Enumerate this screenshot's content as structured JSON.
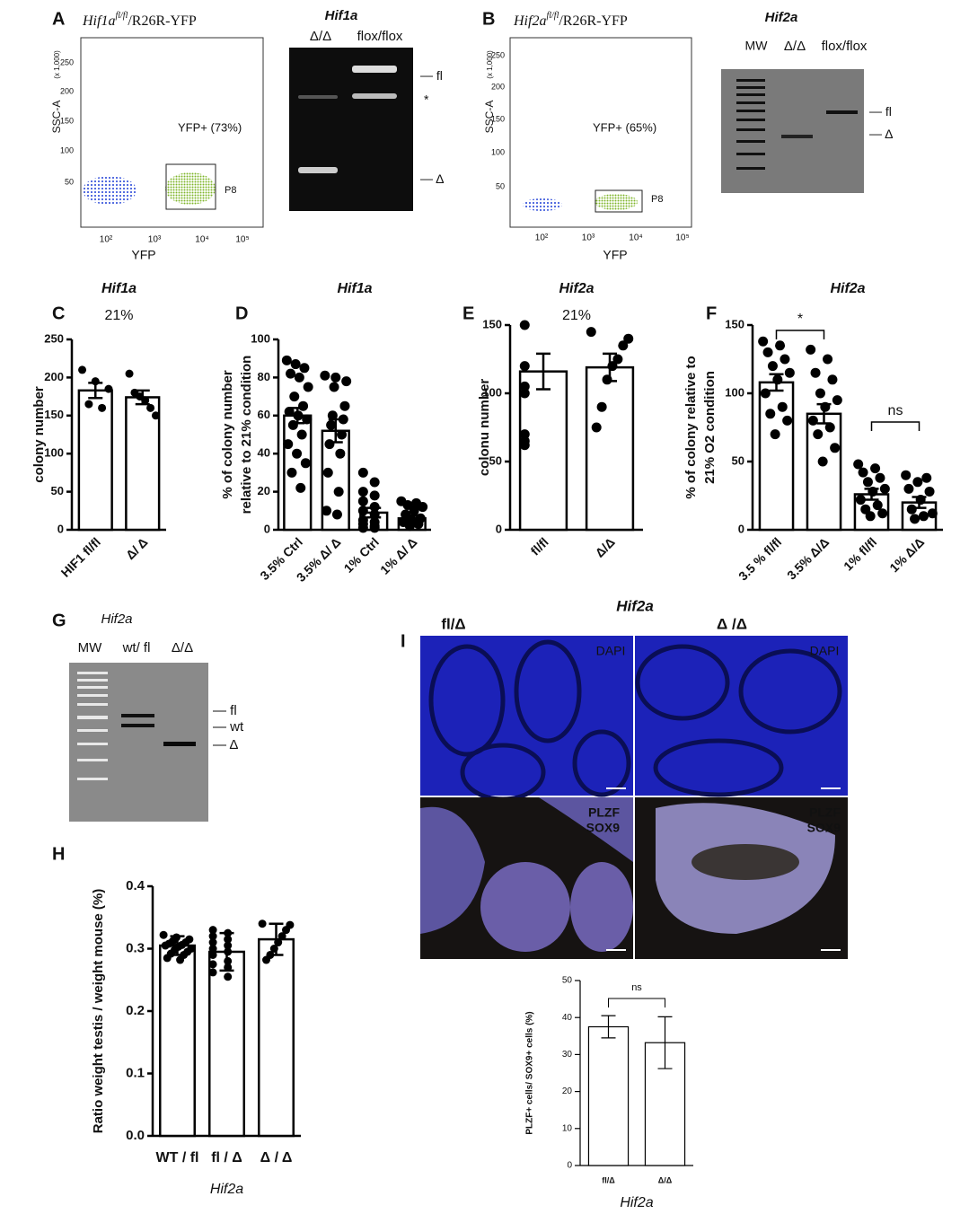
{
  "panel_labels": [
    "A",
    "B",
    "C",
    "D",
    "E",
    "F",
    "G",
    "H",
    "I"
  ],
  "flow": [
    {
      "gene": "Hif1a",
      "allele": "fl/fl",
      "reporter": "/R26R-YFP",
      "ylabel": "SSC-A",
      "yscale": "(x 1,000)",
      "yticks": [
        50,
        100,
        150,
        200,
        250
      ],
      "xticks": [
        "10²",
        "10³",
        "10⁴",
        "10⁵"
      ],
      "xlabel": "YFP",
      "gate": "P8",
      "population": "YFP+ (73%)"
    },
    {
      "gene": "Hif2a",
      "allele": "fl/fl",
      "reporter": "/R26R-YFP",
      "ylabel": "SSC-A",
      "yscale": "(x 1,000)",
      "yticks": [
        50,
        100,
        150,
        200,
        250
      ],
      "xticks": [
        "10²",
        "10³",
        "10⁴",
        "10⁵"
      ],
      "xlabel": "YFP",
      "gate": "P8",
      "population": "YFP+ (65%)"
    }
  ],
  "gels": [
    {
      "title": "Hif1a",
      "lanes": [
        "Δ/Δ",
        "flox/flox"
      ],
      "bands": [
        "fl",
        "*",
        "Δ"
      ]
    },
    {
      "title": "Hif2a",
      "lanes": [
        "MW",
        "Δ/Δ",
        "flox/flox"
      ],
      "bands": [
        "fl",
        "Δ"
      ]
    },
    {
      "title": "Hif2a",
      "lanes": [
        "MW",
        "wt/ fl",
        "Δ/Δ"
      ],
      "bands": [
        "fl",
        "wt",
        "Δ"
      ]
    }
  ],
  "micrograph": {
    "title": "Hif2a",
    "columns": [
      "fl/Δ",
      "Δ /Δ"
    ],
    "stain_top": "DAPI",
    "stain_green": "PLZF",
    "stain_red": "SOX9"
  },
  "chart_data": [
    {
      "type": "bar",
      "title": "Hif1a",
      "subtitle": "21%",
      "ylabel": [
        "colony number"
      ],
      "categories": [
        "HIF1 fl/fl",
        "Δ/ Δ"
      ],
      "values": [
        183,
        174
      ],
      "errors": [
        10,
        9
      ],
      "points": [
        [
          210,
          195,
          185,
          165,
          160
        ],
        [
          205,
          180,
          175,
          170,
          160,
          150
        ]
      ],
      "ylim": [
        0,
        250
      ],
      "yticks": [
        0,
        50,
        100,
        150,
        200,
        250
      ]
    },
    {
      "type": "bar",
      "title": "Hif1a",
      "ylabel": [
        "% of colony number",
        "relative to 21% condition"
      ],
      "categories": [
        "3.5% Ctrl",
        "3.5% Δ/ Δ",
        "1% Ctrl",
        "1% Δ/ Δ"
      ],
      "values": [
        60,
        52,
        9,
        6
      ],
      "errors": [
        4,
        6,
        2.5,
        1.5
      ],
      "points": [
        [
          89,
          87,
          85,
          82,
          80,
          75,
          70,
          65,
          62,
          60,
          58,
          55,
          50,
          45,
          40,
          35,
          30,
          22
        ],
        [
          81,
          80,
          78,
          75,
          65,
          60,
          58,
          55,
          50,
          45,
          40,
          30,
          20,
          10,
          8
        ],
        [
          30,
          25,
          20,
          18,
          15,
          12,
          10,
          8,
          5,
          4,
          3,
          2,
          1,
          1
        ],
        [
          15,
          14,
          13,
          12,
          10,
          8,
          6,
          5,
          4,
          3,
          2
        ]
      ],
      "ylim": [
        0,
        100
      ],
      "yticks": [
        0,
        20,
        40,
        60,
        80,
        100
      ]
    },
    {
      "type": "bar",
      "title": "Hif2a",
      "subtitle": "21%",
      "ylabel": [
        "colonu number"
      ],
      "categories": [
        "fl/fl",
        "Δ/Δ"
      ],
      "values": [
        116,
        119
      ],
      "errors": [
        13,
        10
      ],
      "points": [
        [
          150,
          120,
          105,
          100,
          70,
          65,
          62
        ],
        [
          145,
          140,
          135,
          125,
          120,
          110,
          90,
          75
        ]
      ],
      "ylim": [
        0,
        150
      ],
      "yticks": [
        0,
        50,
        100,
        150
      ]
    },
    {
      "type": "bar",
      "title": "Hif2a",
      "ylabel": [
        "% of colony relative to",
        "21% O2 condition"
      ],
      "categories": [
        "3.5 % fl/fl",
        "3.5% Δ/Δ",
        "1% fl/fl",
        "1% Δ/Δ"
      ],
      "values": [
        108,
        85,
        26,
        20
      ],
      "errors": [
        6,
        7,
        4,
        4
      ],
      "points": [
        [
          138,
          135,
          130,
          125,
          120,
          115,
          110,
          100,
          90,
          85,
          80,
          70
        ],
        [
          132,
          125,
          115,
          110,
          100,
          95,
          90,
          80,
          75,
          70,
          60,
          50
        ],
        [
          48,
          45,
          42,
          38,
          35,
          30,
          28,
          22,
          18,
          15,
          12,
          10
        ],
        [
          40,
          38,
          35,
          30,
          28,
          22,
          15,
          12,
          10,
          8
        ]
      ],
      "annotations": [
        "*",
        "ns"
      ],
      "ylim": [
        0,
        150
      ],
      "yticks": [
        0,
        50,
        100,
        150
      ]
    },
    {
      "type": "bar",
      "ylabel": [
        "Ratio weight testis / weight mouse (%)"
      ],
      "xlabel": "Hif2a",
      "categories": [
        "WT / fl",
        "fl / Δ",
        "Δ / Δ"
      ],
      "values": [
        0.305,
        0.295,
        0.315
      ],
      "errors": [
        0.015,
        0.03,
        0.025
      ],
      "points": [
        [
          0.322,
          0.318,
          0.315,
          0.312,
          0.31,
          0.308,
          0.306,
          0.305,
          0.303,
          0.3,
          0.298,
          0.295,
          0.292,
          0.29,
          0.285,
          0.282
        ],
        [
          0.33,
          0.325,
          0.32,
          0.315,
          0.31,
          0.305,
          0.3,
          0.295,
          0.29,
          0.28,
          0.275,
          0.27,
          0.262,
          0.255
        ],
        [
          0.34,
          0.338,
          0.33,
          0.32,
          0.31,
          0.3,
          0.29,
          0.282
        ]
      ],
      "ylim": [
        0,
        0.4
      ],
      "yticks": [
        {
          "value": 0,
          "label": "0.0"
        },
        0.1,
        0.2,
        0.3,
        0.4
      ]
    },
    {
      "type": "bar",
      "ylabel": [
        "PLZF+ cells/ SOX9+ cells (%)"
      ],
      "xlabel": "Hif2a",
      "categories": [
        "fl/Δ",
        "Δ/Δ"
      ],
      "values": [
        37.5,
        33.2
      ],
      "errors": [
        3,
        7
      ],
      "annotations": [
        "ns"
      ],
      "ylim": [
        0,
        50
      ],
      "yticks": [
        0,
        10,
        20,
        30,
        40,
        50
      ]
    }
  ]
}
